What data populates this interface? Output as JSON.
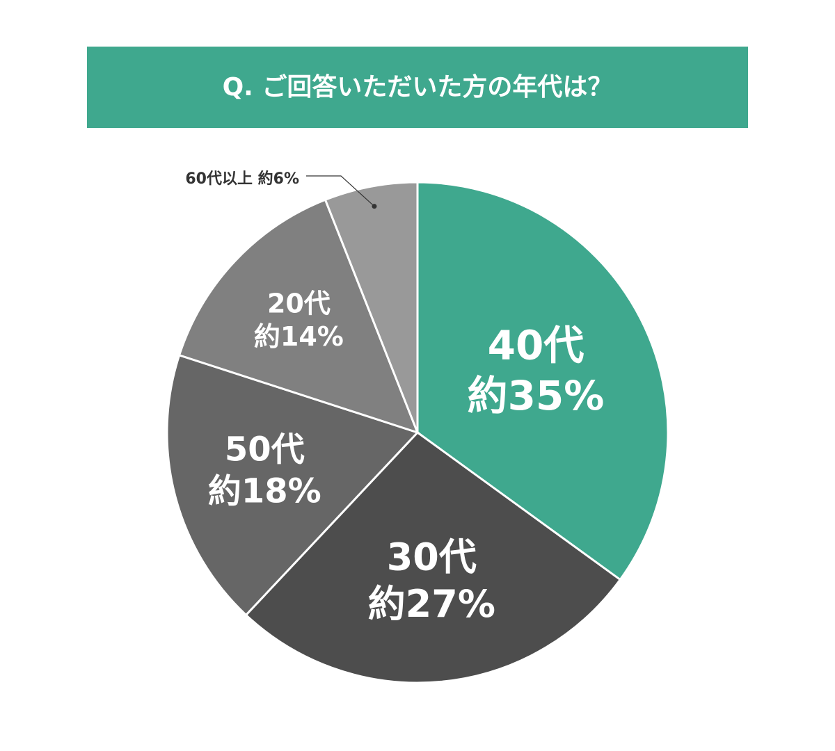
{
  "chart_data": {
    "type": "pie",
    "title": "Q. ご回答いただいた方の年代は？",
    "categories": [
      "40代",
      "30代",
      "50代",
      "20代",
      "60代以上"
    ],
    "values": [
      35,
      27,
      18,
      14,
      6
    ],
    "value_labels": [
      "約35%",
      "約27%",
      "約18%",
      "約14%",
      "約6%"
    ],
    "colors": [
      "#3fa88e",
      "#4d4d4d",
      "#666666",
      "#808080",
      "#999999"
    ]
  }
}
